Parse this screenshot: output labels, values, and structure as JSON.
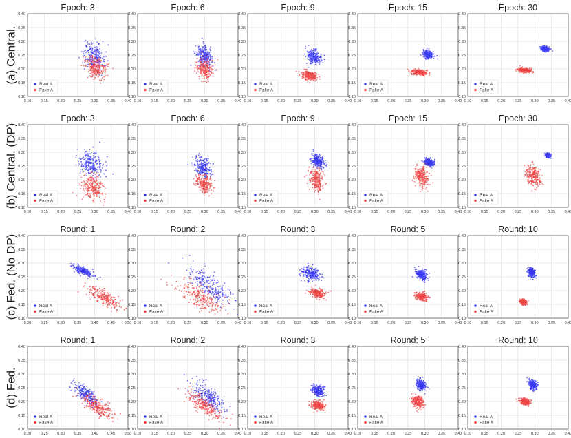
{
  "figure": {
    "row_labels": [
      "(a) Central.",
      "(b) Central. (DP)",
      "(c) Fed. (No DP)",
      "(d) Fed."
    ],
    "legend": {
      "real": "Real A",
      "fake": "Fake A"
    },
    "colors": {
      "real": "#3a3af0",
      "fake": "#ee4646",
      "grid": "#e3e3e3",
      "frame": "#555555"
    },
    "y_ticks": [
      0.1,
      0.15,
      0.2,
      0.25,
      0.3,
      0.35,
      0.4
    ],
    "x_ticks_default": [
      0.1,
      0.15,
      0.2,
      0.25,
      0.3,
      0.35,
      0.4
    ]
  },
  "chart_data": [
    {
      "type": "scatter",
      "row": 0,
      "col": 0,
      "title": "Epoch: 3",
      "xlim": [
        0.1,
        0.4
      ],
      "ylim": [
        0.1,
        0.4
      ],
      "x_ticks": [
        "0.10",
        "0.15",
        "0.20",
        "0.25",
        "0.30",
        "0.35",
        "0.40"
      ],
      "y_ticks": [
        "0.10",
        "0.15",
        "0.20",
        "0.25",
        "0.30",
        "0.35",
        "0.40"
      ],
      "series": [
        {
          "name": "Real A",
          "center": [
            0.298,
            0.245
          ],
          "spread": [
            0.016,
            0.025
          ],
          "points": 240
        },
        {
          "name": "Fake A",
          "center": [
            0.305,
            0.205
          ],
          "spread": [
            0.016,
            0.02
          ],
          "points": 240
        }
      ]
    },
    {
      "type": "scatter",
      "row": 0,
      "col": 1,
      "title": "Epoch: 6",
      "xlim": [
        0.1,
        0.4
      ],
      "ylim": [
        0.1,
        0.4
      ],
      "x_ticks": [
        "0.10",
        "0.15",
        "0.20",
        "0.25",
        "0.30",
        "0.35",
        "0.40"
      ],
      "y_ticks": [
        "0.10",
        "0.15",
        "0.20",
        "0.25",
        "0.30",
        "0.35",
        "0.40"
      ],
      "series": [
        {
          "name": "Real A",
          "center": [
            0.298,
            0.245
          ],
          "spread": [
            0.012,
            0.018
          ],
          "points": 240
        },
        {
          "name": "Fake A",
          "center": [
            0.3,
            0.2
          ],
          "spread": [
            0.012,
            0.018
          ],
          "points": 240
        }
      ]
    },
    {
      "type": "scatter",
      "row": 0,
      "col": 2,
      "title": "Epoch: 9",
      "xlim": [
        0.1,
        0.4
      ],
      "ylim": [
        0.1,
        0.4
      ],
      "x_ticks": [
        "0.10",
        "0.15",
        "0.20",
        "0.25",
        "0.30",
        "0.35",
        "0.40"
      ],
      "y_ticks": [
        "0.10",
        "0.15",
        "0.20",
        "0.25",
        "0.30",
        "0.35",
        "0.40"
      ],
      "series": [
        {
          "name": "Real A",
          "center": [
            0.298,
            0.245
          ],
          "spread": [
            0.01,
            0.013
          ],
          "points": 240
        },
        {
          "name": "Fake A",
          "center": [
            0.285,
            0.175
          ],
          "spread": [
            0.013,
            0.008
          ],
          "points": 240
        }
      ]
    },
    {
      "type": "scatter",
      "row": 0,
      "col": 3,
      "title": "Epoch: 15",
      "xlim": [
        0.1,
        0.4
      ],
      "ylim": [
        0.1,
        0.4
      ],
      "x_ticks": [
        "0.10",
        "0.15",
        "0.20",
        "0.25",
        "0.30",
        "0.35",
        "0.40"
      ],
      "y_ticks": [
        "0.10",
        "0.15",
        "0.20",
        "0.25",
        "0.30",
        "0.35",
        "0.40"
      ],
      "series": [
        {
          "name": "Real A",
          "center": [
            0.31,
            0.252
          ],
          "spread": [
            0.008,
            0.008
          ],
          "points": 240
        },
        {
          "name": "Fake A",
          "center": [
            0.285,
            0.187
          ],
          "spread": [
            0.012,
            0.005
          ],
          "points": 240
        }
      ]
    },
    {
      "type": "scatter",
      "row": 0,
      "col": 4,
      "title": "Epoch: 30",
      "xlim": [
        0.1,
        0.4
      ],
      "ylim": [
        0.1,
        0.4
      ],
      "x_ticks": [
        "0.10",
        "0.15",
        "0.20",
        "0.25",
        "0.30",
        "0.35",
        "0.40"
      ],
      "y_ticks": [
        "0.10",
        "0.15",
        "0.20",
        "0.25",
        "0.30",
        "0.35",
        "0.40"
      ],
      "series": [
        {
          "name": "Real A",
          "center": [
            0.33,
            0.272
          ],
          "spread": [
            0.006,
            0.005
          ],
          "points": 240
        },
        {
          "name": "Fake A",
          "center": [
            0.27,
            0.195
          ],
          "spread": [
            0.01,
            0.004
          ],
          "points": 240
        }
      ]
    },
    {
      "type": "scatter",
      "row": 1,
      "col": 0,
      "title": "Epoch: 3",
      "xlim": [
        0.1,
        0.4
      ],
      "ylim": [
        0.1,
        0.4
      ],
      "x_ticks": [
        "0.10",
        "0.15",
        "0.20",
        "0.25",
        "0.30",
        "0.35",
        "0.40"
      ],
      "y_ticks": [
        "0.10",
        "0.15",
        "0.20",
        "0.25",
        "0.30",
        "0.35",
        "0.40"
      ],
      "series": [
        {
          "name": "Real A",
          "center": [
            0.29,
            0.258
          ],
          "spread": [
            0.02,
            0.022
          ],
          "points": 240
        },
        {
          "name": "Fake A",
          "center": [
            0.295,
            0.17
          ],
          "spread": [
            0.018,
            0.022
          ],
          "points": 240
        }
      ]
    },
    {
      "type": "scatter",
      "row": 1,
      "col": 1,
      "title": "Epoch: 6",
      "xlim": [
        0.1,
        0.4
      ],
      "ylim": [
        0.1,
        0.4
      ],
      "x_ticks": [
        "0.10",
        "0.15",
        "0.20",
        "0.25",
        "0.30",
        "0.35",
        "0.40"
      ],
      "y_ticks": [
        "0.10",
        "0.15",
        "0.20",
        "0.25",
        "0.30",
        "0.35",
        "0.40"
      ],
      "series": [
        {
          "name": "Real A",
          "center": [
            0.295,
            0.245
          ],
          "spread": [
            0.013,
            0.02
          ],
          "points": 240
        },
        {
          "name": "Fake A",
          "center": [
            0.298,
            0.185
          ],
          "spread": [
            0.012,
            0.015
          ],
          "points": 240
        }
      ]
    },
    {
      "type": "scatter",
      "row": 1,
      "col": 2,
      "title": "Epoch: 9",
      "xlim": [
        0.1,
        0.4
      ],
      "ylim": [
        0.1,
        0.4
      ],
      "x_ticks": [
        "0.10",
        "0.15",
        "0.20",
        "0.25",
        "0.30",
        "0.35",
        "0.40"
      ],
      "y_ticks": [
        "0.10",
        "0.15",
        "0.20",
        "0.25",
        "0.30",
        "0.35",
        "0.40"
      ],
      "series": [
        {
          "name": "Real A",
          "center": [
            0.31,
            0.268
          ],
          "spread": [
            0.009,
            0.012
          ],
          "points": 240
        },
        {
          "name": "Fake A",
          "center": [
            0.305,
            0.2
          ],
          "spread": [
            0.011,
            0.022
          ],
          "points": 240
        }
      ]
    },
    {
      "type": "scatter",
      "row": 1,
      "col": 3,
      "title": "Epoch: 15",
      "xlim": [
        0.1,
        0.4
      ],
      "ylim": [
        0.1,
        0.4
      ],
      "x_ticks": [
        "0.10",
        "0.15",
        "0.20",
        "0.25",
        "0.30",
        "0.35",
        "0.40"
      ],
      "y_ticks": [
        "0.10",
        "0.15",
        "0.20",
        "0.25",
        "0.30",
        "0.35",
        "0.40"
      ],
      "series": [
        {
          "name": "Real A",
          "center": [
            0.313,
            0.262
          ],
          "spread": [
            0.007,
            0.007
          ],
          "points": 240
        },
        {
          "name": "Fake A",
          "center": [
            0.29,
            0.21
          ],
          "spread": [
            0.01,
            0.018
          ],
          "points": 240
        }
      ]
    },
    {
      "type": "scatter",
      "row": 1,
      "col": 4,
      "title": "Epoch: 30",
      "xlim": [
        0.1,
        0.4
      ],
      "ylim": [
        0.1,
        0.4
      ],
      "x_ticks": [
        "0.10",
        "0.15",
        "0.20",
        "0.25",
        "0.30",
        "0.35",
        "0.40"
      ],
      "y_ticks": [
        "0.10",
        "0.15",
        "0.20",
        "0.25",
        "0.30",
        "0.35",
        "0.40"
      ],
      "series": [
        {
          "name": "Real A",
          "center": [
            0.34,
            0.288
          ],
          "spread": [
            0.004,
            0.004
          ],
          "points": 240
        },
        {
          "name": "Fake A",
          "center": [
            0.295,
            0.215
          ],
          "spread": [
            0.012,
            0.02
          ],
          "points": 240
        }
      ]
    },
    {
      "type": "scatter",
      "row": 2,
      "col": 0,
      "title": "Round: 1",
      "xlim": [
        0.2,
        0.5
      ],
      "ylim": [
        0.1,
        0.4
      ],
      "x_ticks": [
        "0.20",
        "0.25",
        "0.30",
        "0.35",
        "0.40",
        "0.45",
        "0.50"
      ],
      "y_ticks": [
        "0.10",
        "0.15",
        "0.20",
        "0.25",
        "0.30",
        "0.35",
        "0.40"
      ],
      "series": [
        {
          "name": "Real A",
          "center": [
            0.365,
            0.272
          ],
          "spread": [
            0.015,
            0.01
          ],
          "points": 240
        },
        {
          "name": "Fake A",
          "center": [
            0.43,
            0.175
          ],
          "spread": [
            0.025,
            0.02
          ],
          "points": 240
        }
      ]
    },
    {
      "type": "scatter",
      "row": 2,
      "col": 1,
      "title": "Round: 2",
      "xlim": [
        0.1,
        0.4
      ],
      "ylim": [
        0.1,
        0.4
      ],
      "x_ticks": [
        "0.10",
        "0.15",
        "0.20",
        "0.25",
        "0.30",
        "0.35",
        "0.40"
      ],
      "y_ticks": [
        "0.10",
        "0.15",
        "0.20",
        "0.25",
        "0.30",
        "0.35",
        "0.40"
      ],
      "series": [
        {
          "name": "Real A",
          "center": [
            0.32,
            0.215
          ],
          "spread": [
            0.035,
            0.035
          ],
          "points": 240
        },
        {
          "name": "Fake A",
          "center": [
            0.29,
            0.175
          ],
          "spread": [
            0.035,
            0.03
          ],
          "points": 240
        }
      ]
    },
    {
      "type": "scatter",
      "row": 2,
      "col": 2,
      "title": "Round: 3",
      "xlim": [
        0.1,
        0.4
      ],
      "ylim": [
        0.1,
        0.4
      ],
      "x_ticks": [
        "0.10",
        "0.15",
        "0.20",
        "0.25",
        "0.30",
        "0.35",
        "0.40"
      ],
      "y_ticks": [
        "0.10",
        "0.15",
        "0.20",
        "0.25",
        "0.30",
        "0.35",
        "0.40"
      ],
      "series": [
        {
          "name": "Real A",
          "center": [
            0.29,
            0.26
          ],
          "spread": [
            0.014,
            0.012
          ],
          "points": 240
        },
        {
          "name": "Fake A",
          "center": [
            0.31,
            0.19
          ],
          "spread": [
            0.012,
            0.008
          ],
          "points": 240
        }
      ]
    },
    {
      "type": "scatter",
      "row": 2,
      "col": 3,
      "title": "Round: 5",
      "xlim": [
        0.1,
        0.4
      ],
      "ylim": [
        0.1,
        0.4
      ],
      "x_ticks": [
        "0.10",
        "0.15",
        "0.20",
        "0.25",
        "0.30",
        "0.35",
        "0.40"
      ],
      "y_ticks": [
        "0.10",
        "0.15",
        "0.20",
        "0.25",
        "0.30",
        "0.35",
        "0.40"
      ],
      "series": [
        {
          "name": "Real A",
          "center": [
            0.29,
            0.258
          ],
          "spread": [
            0.008,
            0.01
          ],
          "points": 240
        },
        {
          "name": "Fake A",
          "center": [
            0.29,
            0.178
          ],
          "spread": [
            0.009,
            0.007
          ],
          "points": 240
        }
      ]
    },
    {
      "type": "scatter",
      "row": 2,
      "col": 4,
      "title": "Round: 10",
      "xlim": [
        0.1,
        0.4
      ],
      "ylim": [
        0.1,
        0.4
      ],
      "x_ticks": [
        "0.10",
        "0.15",
        "0.20",
        "0.25",
        "0.30",
        "0.35",
        "0.40"
      ],
      "y_ticks": [
        "0.10",
        "0.15",
        "0.20",
        "0.25",
        "0.30",
        "0.35",
        "0.40"
      ],
      "series": [
        {
          "name": "Real A",
          "center": [
            0.29,
            0.265
          ],
          "spread": [
            0.006,
            0.008
          ],
          "points": 240
        },
        {
          "name": "Fake A",
          "center": [
            0.265,
            0.16
          ],
          "spread": [
            0.005,
            0.005
          ],
          "points": 240
        }
      ]
    },
    {
      "type": "scatter",
      "row": 3,
      "col": 0,
      "title": "Round: 1",
      "xlim": [
        0.2,
        0.5
      ],
      "ylim": [
        0.1,
        0.4
      ],
      "x_ticks": [
        "0.20",
        "0.25",
        "0.30",
        "0.35",
        "0.40",
        "0.45",
        "0.50"
      ],
      "y_ticks": [
        "0.10",
        "0.15",
        "0.20",
        "0.25",
        "0.30",
        "0.35",
        "0.40"
      ],
      "series": [
        {
          "name": "Real A",
          "center": [
            0.375,
            0.225
          ],
          "spread": [
            0.018,
            0.02
          ],
          "points": 240
        },
        {
          "name": "Fake A",
          "center": [
            0.41,
            0.18
          ],
          "spread": [
            0.025,
            0.022
          ],
          "points": 240
        }
      ]
    },
    {
      "type": "scatter",
      "row": 3,
      "col": 1,
      "title": "Round: 2",
      "xlim": [
        0.1,
        0.4
      ],
      "ylim": [
        0.1,
        0.4
      ],
      "x_ticks": [
        "0.10",
        "0.15",
        "0.20",
        "0.25",
        "0.30",
        "0.35",
        "0.40"
      ],
      "y_ticks": [
        "0.10",
        "0.15",
        "0.20",
        "0.25",
        "0.30",
        "0.35",
        "0.40"
      ],
      "series": [
        {
          "name": "Real A",
          "center": [
            0.31,
            0.22
          ],
          "spread": [
            0.025,
            0.028
          ],
          "points": 240
        },
        {
          "name": "Fake A",
          "center": [
            0.3,
            0.185
          ],
          "spread": [
            0.028,
            0.025
          ],
          "points": 240
        }
      ]
    },
    {
      "type": "scatter",
      "row": 3,
      "col": 2,
      "title": "Round: 3",
      "xlim": [
        0.1,
        0.4
      ],
      "ylim": [
        0.1,
        0.4
      ],
      "x_ticks": [
        "0.10",
        "0.15",
        "0.20",
        "0.25",
        "0.30",
        "0.35",
        "0.40"
      ],
      "y_ticks": [
        "0.10",
        "0.15",
        "0.20",
        "0.25",
        "0.30",
        "0.35",
        "0.40"
      ],
      "series": [
        {
          "name": "Real A",
          "center": [
            0.31,
            0.24
          ],
          "spread": [
            0.01,
            0.01
          ],
          "points": 240
        },
        {
          "name": "Fake A",
          "center": [
            0.31,
            0.185
          ],
          "spread": [
            0.01,
            0.008
          ],
          "points": 240
        }
      ]
    },
    {
      "type": "scatter",
      "row": 3,
      "col": 3,
      "title": "Round: 5",
      "xlim": [
        0.1,
        0.4
      ],
      "ylim": [
        0.1,
        0.4
      ],
      "x_ticks": [
        "0.10",
        "0.15",
        "0.20",
        "0.25",
        "0.30",
        "0.35",
        "0.40"
      ],
      "y_ticks": [
        "0.10",
        "0.15",
        "0.20",
        "0.25",
        "0.30",
        "0.35",
        "0.40"
      ],
      "series": [
        {
          "name": "Real A",
          "center": [
            0.29,
            0.26
          ],
          "spread": [
            0.008,
            0.01
          ],
          "points": 240
        },
        {
          "name": "Fake A",
          "center": [
            0.28,
            0.2
          ],
          "spread": [
            0.009,
            0.012
          ],
          "points": 240
        }
      ]
    },
    {
      "type": "scatter",
      "row": 3,
      "col": 4,
      "title": "Round: 10",
      "xlim": [
        0.1,
        0.4
      ],
      "ylim": [
        0.1,
        0.4
      ],
      "x_ticks": [
        "0.10",
        "0.15",
        "0.20",
        "0.25",
        "0.30",
        "0.35",
        "0.40"
      ],
      "y_ticks": [
        "0.10",
        "0.15",
        "0.20",
        "0.25",
        "0.30",
        "0.35",
        "0.40"
      ],
      "series": [
        {
          "name": "Real A",
          "center": [
            0.295,
            0.262
          ],
          "spread": [
            0.006,
            0.009
          ],
          "points": 240
        },
        {
          "name": "Fake A",
          "center": [
            0.27,
            0.2
          ],
          "spread": [
            0.008,
            0.006
          ],
          "points": 240
        }
      ]
    }
  ]
}
